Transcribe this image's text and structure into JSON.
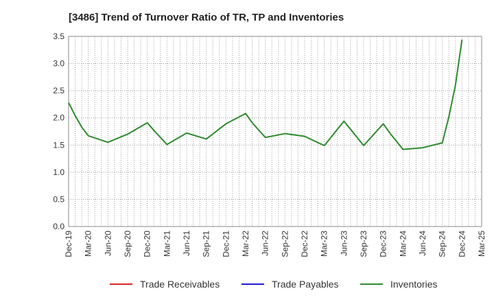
{
  "chart_data": {
    "type": "line",
    "title": "[3486]  Trend of Turnover Ratio of TR, TP and Inventories",
    "xlabel": "",
    "ylabel": "",
    "ylim": [
      0,
      3.5
    ],
    "yticks": [
      "0.0",
      "0.5",
      "1.0",
      "1.5",
      "2.0",
      "2.5",
      "3.0",
      "3.5"
    ],
    "x_tick_labels": [
      "Dec-19",
      "Mar-20",
      "Jun-20",
      "Sep-20",
      "Dec-20",
      "Mar-21",
      "Jun-21",
      "Sep-21",
      "Dec-21",
      "Mar-22",
      "Jun-22",
      "Sep-22",
      "Dec-22",
      "Mar-23",
      "Jun-23",
      "Sep-23",
      "Dec-23",
      "Mar-24",
      "Jun-24",
      "Sep-24",
      "Dec-24",
      "Mar-25"
    ],
    "months": [
      "2019-12",
      "2020-01",
      "2020-02",
      "2020-03",
      "2020-04",
      "2020-05",
      "2020-06",
      "2020-07",
      "2020-08",
      "2020-09",
      "2020-10",
      "2020-11",
      "2020-12",
      "2021-01",
      "2021-02",
      "2021-03",
      "2021-04",
      "2021-05",
      "2021-06",
      "2021-07",
      "2021-08",
      "2021-09",
      "2021-10",
      "2021-11",
      "2021-12",
      "2022-01",
      "2022-02",
      "2022-03",
      "2022-04",
      "2022-05",
      "2022-06",
      "2022-07",
      "2022-08",
      "2022-09",
      "2022-10",
      "2022-11",
      "2022-12",
      "2023-01",
      "2023-02",
      "2023-03",
      "2023-04",
      "2023-05",
      "2023-06",
      "2023-07",
      "2023-08",
      "2023-09",
      "2023-10",
      "2023-11",
      "2023-12",
      "2024-01",
      "2024-02",
      "2024-03",
      "2024-04",
      "2024-05",
      "2024-06",
      "2024-07",
      "2024-08",
      "2024-09",
      "2024-10",
      "2024-11",
      "2024-12",
      "2025-01",
      "2025-02",
      "2025-03"
    ],
    "grid": true,
    "legend_position": "bottom",
    "series": [
      {
        "name": "Trade Receivables",
        "color": "#d62728",
        "points": []
      },
      {
        "name": "Trade Payables",
        "color": "#1f1fd0",
        "points": []
      },
      {
        "name": "Inventories",
        "color": "#2e8b2e",
        "points": [
          {
            "x": "2019-12",
            "y": 2.28
          },
          {
            "x": "2020-01",
            "y": 2.04
          },
          {
            "x": "2020-02",
            "y": 1.83
          },
          {
            "x": "2020-03",
            "y": 1.67
          },
          {
            "x": "2020-06",
            "y": 1.55
          },
          {
            "x": "2020-09",
            "y": 1.7
          },
          {
            "x": "2020-12",
            "y": 1.91
          },
          {
            "x": "2021-01",
            "y": 1.77
          },
          {
            "x": "2021-03",
            "y": 1.51
          },
          {
            "x": "2021-06",
            "y": 1.72
          },
          {
            "x": "2021-09",
            "y": 1.61
          },
          {
            "x": "2021-12",
            "y": 1.89
          },
          {
            "x": "2022-03",
            "y": 2.08
          },
          {
            "x": "2022-04",
            "y": 1.91
          },
          {
            "x": "2022-06",
            "y": 1.64
          },
          {
            "x": "2022-09",
            "y": 1.71
          },
          {
            "x": "2022-12",
            "y": 1.66
          },
          {
            "x": "2023-03",
            "y": 1.49
          },
          {
            "x": "2023-06",
            "y": 1.94
          },
          {
            "x": "2023-09",
            "y": 1.49
          },
          {
            "x": "2023-12",
            "y": 1.89
          },
          {
            "x": "2024-01",
            "y": 1.72
          },
          {
            "x": "2024-03",
            "y": 1.42
          },
          {
            "x": "2024-06",
            "y": 1.45
          },
          {
            "x": "2024-09",
            "y": 1.54
          },
          {
            "x": "2024-10",
            "y": 2.02
          },
          {
            "x": "2024-11",
            "y": 2.6
          },
          {
            "x": "2024-12",
            "y": 3.44
          }
        ]
      }
    ]
  }
}
